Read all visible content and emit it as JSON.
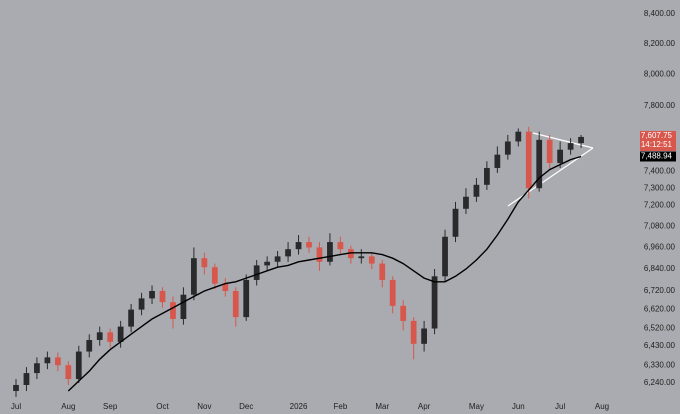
{
  "chart_data": {
    "type": "candlestick",
    "log_scale": true,
    "grid": false,
    "up_color": "#2a2a2c",
    "down_color": "#d8574c",
    "categories": [
      "Jul",
      null,
      null,
      null,
      null,
      "Aug",
      null,
      null,
      null,
      "Sep",
      null,
      null,
      null,
      null,
      "Oct",
      null,
      null,
      null,
      "Nov",
      null,
      null,
      null,
      "Dec",
      null,
      null,
      null,
      null,
      "2026",
      null,
      null,
      null,
      "Feb",
      null,
      null,
      null,
      "Mar",
      null,
      null,
      null,
      "Apr",
      null,
      null,
      null,
      null,
      "May",
      null,
      null,
      null,
      "Jun",
      null,
      null,
      null,
      "Jul",
      null,
      null,
      null,
      "Aug"
    ],
    "open": [
      6200,
      6230,
      6290,
      6340,
      6370,
      6330,
      6260,
      6400,
      6460,
      6500,
      6450,
      6530,
      6620,
      6680,
      6720,
      6660,
      6570,
      6700,
      6900,
      6850,
      6760,
      6720,
      6580,
      6780,
      6860,
      6880,
      6910,
      6950,
      6990,
      6960,
      6880,
      6990,
      6950,
      6900,
      6910,
      6870,
      6780,
      6640,
      6560,
      6440,
      6520,
      6800,
      7020,
      7180,
      7250,
      7320,
      7420,
      7500,
      7580,
      7640,
      7300,
      7590,
      7450,
      7530,
      7570,
      null,
      null
    ],
    "high": [
      6260,
      6320,
      6370,
      6400,
      6395,
      6350,
      6430,
      6490,
      6530,
      6520,
      6560,
      6650,
      6710,
      6750,
      6740,
      6690,
      6740,
      6960,
      6930,
      6870,
      6790,
      6740,
      6810,
      6890,
      6910,
      6940,
      6990,
      7030,
      7020,
      6990,
      7040,
      7020,
      6970,
      6950,
      6930,
      6890,
      6800,
      6670,
      6580,
      6560,
      6840,
      7060,
      7220,
      7300,
      7360,
      7460,
      7550,
      7620,
      7660,
      7670,
      7640,
      7620,
      7580,
      7600,
      7620,
      null,
      null
    ],
    "low": [
      6170,
      6200,
      6260,
      6310,
      6300,
      6230,
      6240,
      6370,
      6430,
      6420,
      6420,
      6500,
      6590,
      6650,
      6630,
      6520,
      6540,
      6670,
      6810,
      6730,
      6690,
      6530,
      6560,
      6750,
      6830,
      6850,
      6880,
      6920,
      6930,
      6830,
      6860,
      6920,
      6870,
      6870,
      6840,
      6740,
      6600,
      6510,
      6360,
      6400,
      6490,
      6770,
      6990,
      7150,
      7220,
      7290,
      7390,
      7470,
      7550,
      7240,
      7280,
      7410,
      7420,
      7500,
      7540,
      null,
      null
    ],
    "close": [
      6230,
      6290,
      6340,
      6370,
      6330,
      6260,
      6400,
      6460,
      6500,
      6450,
      6530,
      6620,
      6680,
      6720,
      6660,
      6570,
      6700,
      6900,
      6850,
      6760,
      6720,
      6580,
      6780,
      6860,
      6880,
      6910,
      6950,
      6990,
      6960,
      6880,
      6990,
      6950,
      6900,
      6910,
      6870,
      6780,
      6640,
      6560,
      6440,
      6520,
      6800,
      7020,
      7180,
      7250,
      7320,
      7420,
      7500,
      7580,
      7640,
      7300,
      7590,
      7450,
      7530,
      7570,
      7607.75,
      null,
      null
    ],
    "close_label": "7,607.75",
    "countdown": "14:12:51",
    "moving_average": {
      "color": "#000000",
      "values": [
        null,
        null,
        null,
        null,
        null,
        6200,
        6250,
        6300,
        6360,
        6410,
        6450,
        6490,
        6530,
        6570,
        6600,
        6630,
        6660,
        6690,
        6720,
        6740,
        6760,
        6770,
        6790,
        6810,
        6830,
        6850,
        6860,
        6880,
        6890,
        6900,
        6910,
        6920,
        6930,
        6930,
        6930,
        6920,
        6900,
        6870,
        6830,
        6790,
        6770,
        6770,
        6800,
        6840,
        6890,
        6950,
        7030,
        7120,
        7220,
        7290,
        7360,
        7410,
        7440,
        7470,
        7488.94,
        null,
        null
      ],
      "last_label": "7,488.94"
    },
    "ylim": [
      6165,
      8495
    ],
    "yticks": [
      {
        "value": 8400,
        "label": "8,400.00"
      },
      {
        "value": 8200,
        "label": "8,200.00"
      },
      {
        "value": 8000,
        "label": "8,000.00"
      },
      {
        "value": 7800,
        "label": "7,800.00"
      },
      {
        "value": 7400,
        "label": "7,400.00"
      },
      {
        "value": 7300,
        "label": "7,300.00"
      },
      {
        "value": 7200,
        "label": "7,200.00"
      },
      {
        "value": 7080,
        "label": "7,080.00"
      },
      {
        "value": 6960,
        "label": "6,960.00"
      },
      {
        "value": 6840,
        "label": "6,840.00"
      },
      {
        "value": 6720,
        "label": "6,720.00"
      },
      {
        "value": 6620,
        "label": "6,620.00"
      },
      {
        "value": 6520,
        "label": "6,520.00"
      },
      {
        "value": 6430,
        "label": "6,430.00"
      },
      {
        "value": 6330,
        "label": "6,330.00"
      },
      {
        "value": 6240,
        "label": "6,240.00"
      }
    ]
  }
}
